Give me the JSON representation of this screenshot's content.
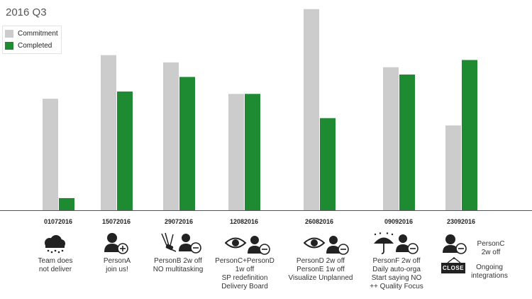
{
  "chart_data": {
    "type": "bar",
    "title": "2016 Q3",
    "categories": [
      "01072016",
      "15072016",
      "29072016",
      "12082016",
      "26082016",
      "09092016",
      "23092016"
    ],
    "series": [
      {
        "name": "Commitment",
        "color": "#cccccc",
        "values": [
          46,
          64,
          61,
          48,
          83,
          59,
          35
        ]
      },
      {
        "name": "Completed",
        "color": "#1e8a32",
        "values": [
          5,
          49,
          55,
          48,
          38,
          56,
          62
        ]
      }
    ],
    "ylim": [
      0,
      85
    ],
    "grid": false,
    "legend": "top-left"
  },
  "annotations": [
    {
      "icon": "rain-cloud-icon",
      "lines": [
        "Team does",
        "not deliver"
      ]
    },
    {
      "icon": "person-add-icon",
      "lines": [
        "PersonA",
        "join us!"
      ]
    },
    {
      "icon": "multitool-person-remove-icon",
      "lines": [
        "PersonB 2w off",
        "NO  multitasking"
      ]
    },
    {
      "icon": "eye-person-remove-icon",
      "lines": [
        "PersonC+PersonD",
        "1w off",
        "SP redefinition",
        "Delivery Board"
      ]
    },
    {
      "icon": "eye-person-remove-icon",
      "lines": [
        "PersonD 2w off",
        "PersonE 1w off",
        "Visualize Unplanned"
      ]
    },
    {
      "icon": "umbrella-person-remove-icon",
      "lines": [
        "PersonF 2w off",
        "Daily auto-orga",
        "Start saying NO",
        "++ Quality Focus"
      ]
    },
    {
      "icon": "person-remove-icon",
      "lines": [
        "PersonC",
        "2w off"
      ]
    },
    {
      "icon": "close-sign-icon",
      "sign_text": "CLOSE",
      "lines": [
        "Ongoing",
        "integrations"
      ]
    }
  ]
}
